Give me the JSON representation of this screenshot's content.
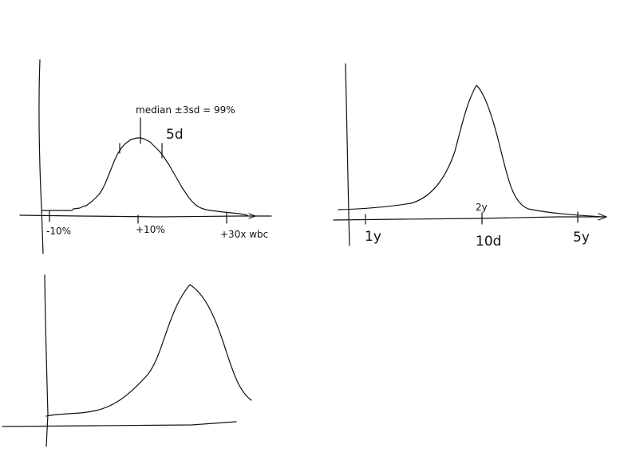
{
  "ink_color": "#111111",
  "background": "#ffffff",
  "sketch1": {
    "annotation": "median ±3sd = 99%",
    "sd_label": "5d",
    "tick_left": "-10%",
    "tick_mid": "+10%",
    "tick_right": "+30x wbc"
  },
  "sketch2": {
    "peak_label": "2y",
    "tick_1": "1y",
    "tick_2": "10d",
    "tick_3": "5y"
  }
}
